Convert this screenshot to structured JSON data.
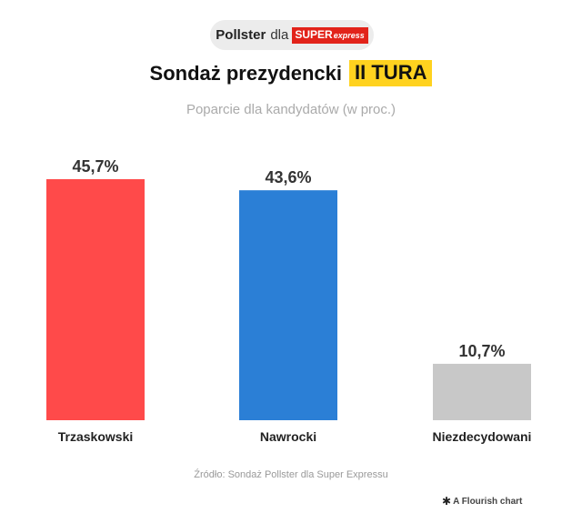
{
  "header": {
    "badge_prefix": "Pollster",
    "badge_mid": "dla",
    "brand_part1": "SUPER",
    "brand_part2": "express"
  },
  "chart_data": {
    "type": "bar",
    "title": "Sondaż prezydencki",
    "title_highlight": "II TURA",
    "subtitle": "Poparcie dla kandydatów (w proc.)",
    "categories": [
      "Trzaskowski",
      "Nawrocki",
      "Niezdecydowani"
    ],
    "values": [
      45.7,
      43.6,
      10.7
    ],
    "value_labels": [
      "45,7%",
      "43,6%",
      "10,7%"
    ],
    "colors": [
      "#ff4a4a",
      "#2b7fd6",
      "#c8c8c8"
    ],
    "ylim": [
      0,
      45.7
    ],
    "grid": false,
    "xlabel": "",
    "ylabel": ""
  },
  "footer": {
    "source": "Źródło: Sondaż Pollster dla Super Expressu",
    "credit": "A Flourish chart"
  }
}
